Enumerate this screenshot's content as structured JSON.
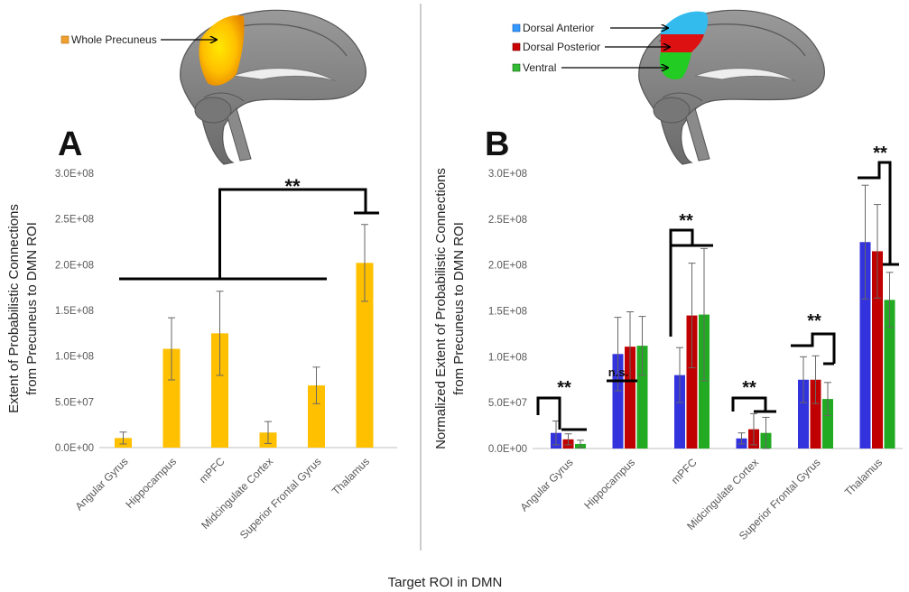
{
  "figure": {
    "xlabel": "Target ROI in DMN",
    "panels_divider_color": "#999999"
  },
  "chart_data": [
    {
      "panel": "A",
      "type": "bar",
      "ylabel_lines": [
        "Extent of Probabilistic Connections",
        "from Precuneus to DMN ROI"
      ],
      "xlabel": "",
      "ylim": [
        0,
        300000000
      ],
      "yticks": [
        {
          "value": 0,
          "label": "0.0E+00"
        },
        {
          "value": 50000000,
          "label": "5.0E+07"
        },
        {
          "value": 100000000,
          "label": "1.0E+08"
        },
        {
          "value": 150000000,
          "label": "1.5E+08"
        },
        {
          "value": 200000000,
          "label": "2.0E+08"
        },
        {
          "value": 250000000,
          "label": "2.5E+08"
        },
        {
          "value": 300000000,
          "label": "3.0E+08"
        }
      ],
      "categories": [
        "Angular Gyrus",
        "Hippocampus",
        "mPFC",
        "Midcingulate Cortex",
        "Superior Frontal Gyrus",
        "Thalamus"
      ],
      "series": [
        {
          "color": "#FFC000",
          "values": [
            10500000,
            108000000,
            125000000,
            16500000,
            68000000,
            202000000
          ],
          "errors": [
            6500000,
            34000000,
            46000000,
            12000000,
            20000000,
            42000000
          ]
        }
      ],
      "significance": [
        {
          "label": "**"
        }
      ],
      "legend": [
        {
          "label": "Whole Precuneus",
          "color": "#F0A030"
        }
      ],
      "grid": false
    },
    {
      "panel": "B",
      "type": "bar",
      "ylabel_lines": [
        "Normalized Extent of Probabilistic Connections",
        "from Precuneus to DMN ROI"
      ],
      "xlabel": "",
      "ylim": [
        0,
        300000000
      ],
      "yticks": [
        {
          "value": 0,
          "label": "0.0E+00"
        },
        {
          "value": 50000000,
          "label": "5.0E+07"
        },
        {
          "value": 100000000,
          "label": "1.0E+08"
        },
        {
          "value": 150000000,
          "label": "1.5E+08"
        },
        {
          "value": 200000000,
          "label": "2.0E+08"
        },
        {
          "value": 250000000,
          "label": "2.5E+08"
        },
        {
          "value": 300000000,
          "label": "3.0E+08"
        }
      ],
      "categories": [
        "Angular Gyrus",
        "Hippocampus",
        "mPFC",
        "Midcingulate Cortex",
        "Superior Frontal Gyrus",
        "Thalamus"
      ],
      "series": [
        {
          "name": "Dorsal Anterior",
          "color": "#3333DD",
          "values": [
            17000000,
            103000000,
            80000000,
            11000000,
            75000000,
            225000000
          ],
          "errors": [
            13000000,
            40000000,
            30000000,
            6000000,
            25000000,
            62000000
          ]
        },
        {
          "name": "Dorsal Posterior",
          "color": "#C00000",
          "values": [
            10000000,
            111000000,
            145000000,
            21000000,
            75000000,
            215000000
          ],
          "errors": [
            6000000,
            38000000,
            57000000,
            17000000,
            26000000,
            51000000
          ]
        },
        {
          "name": "Ventral",
          "color": "#22AA22",
          "values": [
            5000000,
            112000000,
            146000000,
            17000000,
            54000000,
            162000000
          ],
          "errors": [
            4000000,
            32000000,
            72000000,
            17000000,
            18000000,
            30000000
          ]
        }
      ],
      "significance": [
        {
          "category": "Angular Gyrus",
          "label": "**"
        },
        {
          "category": "Hippocampus",
          "label": "n.s."
        },
        {
          "category": "mPFC",
          "label": "**"
        },
        {
          "category": "Midcingulate Cortex",
          "label": "**"
        },
        {
          "category": "Superior Frontal Gyrus",
          "label": "**"
        },
        {
          "category": "Thalamus",
          "label": "**"
        }
      ],
      "legend": [
        {
          "label": "Dorsal Anterior",
          "color": "#3399FF"
        },
        {
          "label": "Dorsal Posterior",
          "color": "#CC0000"
        },
        {
          "label": "Ventral",
          "color": "#33BB33"
        }
      ],
      "grid": false
    }
  ]
}
